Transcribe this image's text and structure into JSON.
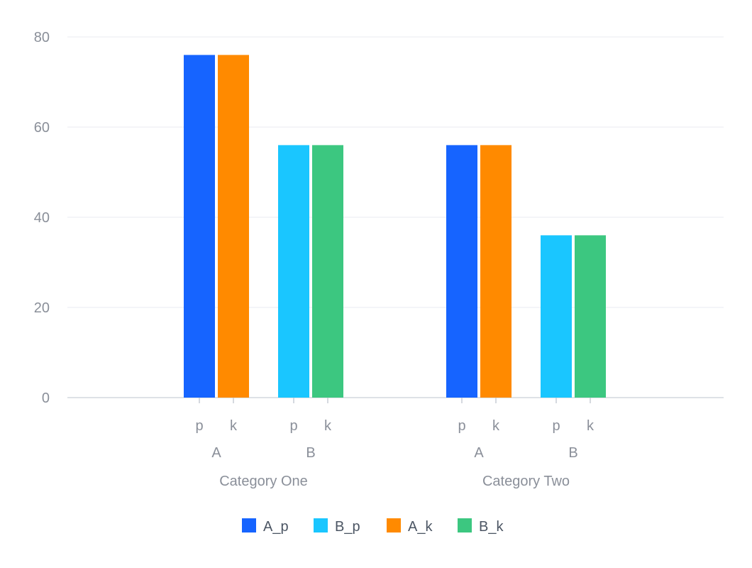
{
  "chart_data": {
    "type": "bar",
    "ylim": [
      0,
      80
    ],
    "yticks": [
      "0",
      "20",
      "40",
      "60",
      "80"
    ],
    "grid": true,
    "legend_position": "bottom",
    "categories": [
      "Category One",
      "Category Two"
    ],
    "groups": [
      {
        "category": "Category One",
        "subgroups": [
          {
            "label": "A",
            "bars": [
              {
                "x_label": "p",
                "series": "A_p",
                "value": 76
              },
              {
                "x_label": "k",
                "series": "A_k",
                "value": 76
              }
            ]
          },
          {
            "label": "B",
            "bars": [
              {
                "x_label": "p",
                "series": "B_p",
                "value": 56
              },
              {
                "x_label": "k",
                "series": "B_k",
                "value": 56
              }
            ]
          }
        ]
      },
      {
        "category": "Category Two",
        "subgroups": [
          {
            "label": "A",
            "bars": [
              {
                "x_label": "p",
                "series": "A_p",
                "value": 56
              },
              {
                "x_label": "k",
                "series": "A_k",
                "value": 56
              }
            ]
          },
          {
            "label": "B",
            "bars": [
              {
                "x_label": "p",
                "series": "B_p",
                "value": 36
              },
              {
                "x_label": "k",
                "series": "B_k",
                "value": 36
              }
            ]
          }
        ]
      }
    ],
    "legend": [
      {
        "name": "A_p",
        "color": "#1664FF"
      },
      {
        "name": "B_p",
        "color": "#1AC6FF"
      },
      {
        "name": "A_k",
        "color": "#FF8A00"
      },
      {
        "name": "B_k",
        "color": "#3CC780"
      }
    ]
  }
}
